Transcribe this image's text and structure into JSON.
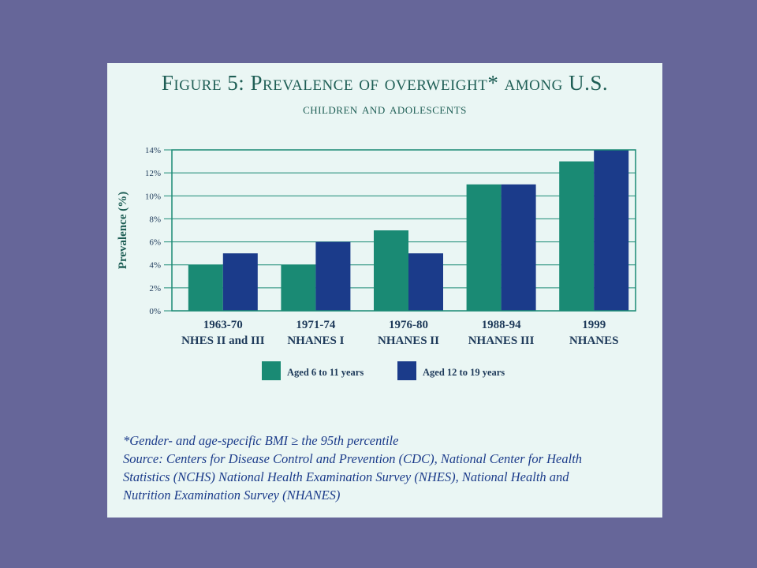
{
  "title": {
    "line1": "Figure 5: Prevalence of overweight* among U.S.",
    "line2": "children and adolescents"
  },
  "chart_data": {
    "type": "bar",
    "ylabel": "Prevalence (%)",
    "ylim": [
      0,
      14
    ],
    "yticks": [
      "0%",
      "2%",
      "4%",
      "6%",
      "8%",
      "10%",
      "12%",
      "14%"
    ],
    "categories": [
      [
        "1963-70",
        "NHES II and III"
      ],
      [
        "1971-74",
        "NHANES I"
      ],
      [
        "1976-80",
        "NHANES II"
      ],
      [
        "1988-94",
        "NHANES III"
      ],
      [
        "1999",
        "NHANES"
      ]
    ],
    "series": [
      {
        "name": "Aged 6 to 11 years",
        "values": [
          4,
          4,
          7,
          11,
          13
        ],
        "color": "#1a8a74"
      },
      {
        "name": "Aged 12 to 19 years",
        "values": [
          5,
          6,
          5,
          11,
          14
        ],
        "color": "#1b3b8a"
      }
    ],
    "grid": true,
    "legend": "bottom"
  },
  "footnotes": {
    "note1": "*Gender- and age-specific BMI ≥ the 95th percentile",
    "source1": "Source: Centers for Disease Control and Prevention (CDC), National Center for Health",
    "source2": "Statistics (NCHS) National Health Examination Survey (NHES), National Health and",
    "source3": "Nutrition Examination Survey (NHANES)"
  },
  "colors": {
    "background": "#666699",
    "panel": "#eaf6f4",
    "title": "#1e5e55",
    "grid": "#1a8a74",
    "footnote": "#1b3b8a"
  }
}
